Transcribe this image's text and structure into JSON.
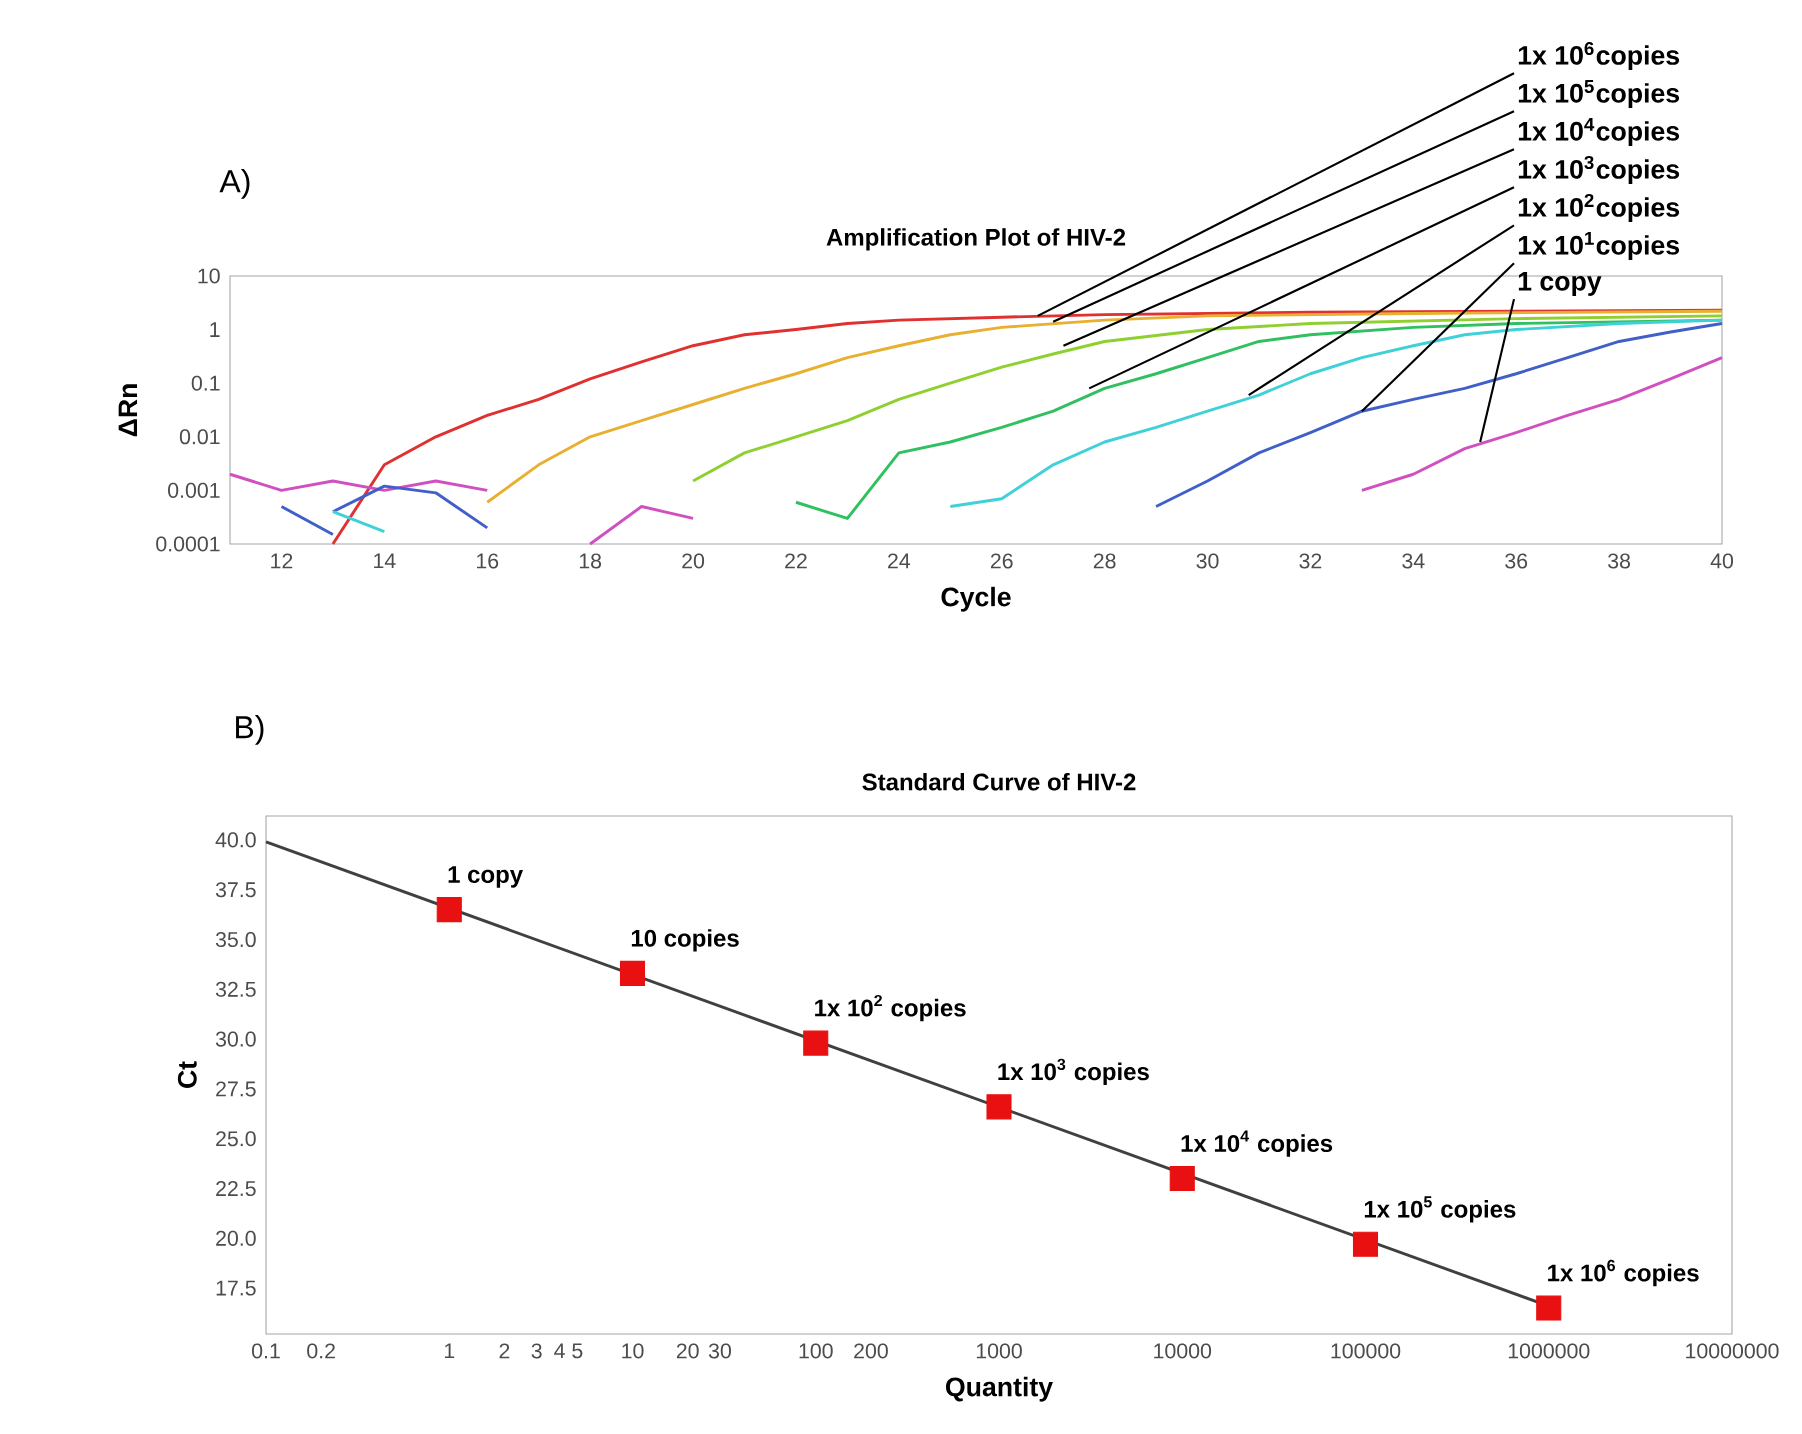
{
  "chart_data": [
    {
      "type": "line",
      "title": "Amplification Plot of HIV-2",
      "xlabel": "Cycle",
      "ylabel": "ΔRn",
      "log": "y",
      "xlim": [
        11,
        40
      ],
      "xticks": [
        12,
        14,
        16,
        18,
        20,
        22,
        24,
        26,
        28,
        30,
        32,
        34,
        36,
        38,
        40
      ],
      "ylim": [
        0.0001,
        10
      ],
      "yticks": [
        0.0001,
        0.001,
        0.01,
        0.1,
        1,
        10
      ],
      "series": [
        {
          "color": "#e03030",
          "x": [
            13,
            14,
            15,
            16,
            17,
            18,
            19,
            20,
            21,
            22,
            23,
            24,
            26,
            28,
            32,
            36,
            40
          ],
          "values": [
            0.0001,
            0.003,
            0.01,
            0.025,
            0.05,
            0.12,
            0.25,
            0.5,
            0.8,
            1.0,
            1.3,
            1.5,
            1.7,
            1.9,
            2.1,
            2.2,
            2.3
          ]
        },
        {
          "color": "#e8b030",
          "x": [
            16,
            17,
            18,
            19,
            20,
            21,
            22,
            23,
            24,
            25,
            26,
            28,
            30,
            34,
            40
          ],
          "values": [
            0.0006,
            0.003,
            0.01,
            0.02,
            0.04,
            0.08,
            0.15,
            0.3,
            0.5,
            0.8,
            1.1,
            1.5,
            1.8,
            2.0,
            2.2
          ]
        },
        {
          "color": "#8fd030",
          "x": [
            20,
            21,
            22,
            23,
            24,
            25,
            26,
            27,
            28,
            30,
            32,
            36,
            40
          ],
          "values": [
            0.0015,
            0.005,
            0.01,
            0.02,
            0.05,
            0.1,
            0.2,
            0.35,
            0.6,
            1.0,
            1.3,
            1.6,
            1.8
          ]
        },
        {
          "color": "#30c060",
          "x": [
            22,
            23,
            24,
            25,
            26,
            27,
            28,
            29,
            30,
            31,
            32,
            34,
            36,
            40
          ],
          "values": [
            0.0006,
            0.0003,
            0.005,
            0.008,
            0.015,
            0.03,
            0.08,
            0.15,
            0.3,
            0.6,
            0.8,
            1.1,
            1.3,
            1.5
          ]
        },
        {
          "color": "#40d0d8",
          "x": [
            25,
            26,
            27,
            28,
            29,
            30,
            31,
            32,
            33,
            34,
            35,
            36,
            38,
            40
          ],
          "values": [
            0.0005,
            0.0007,
            0.003,
            0.008,
            0.015,
            0.03,
            0.06,
            0.15,
            0.3,
            0.5,
            0.8,
            1.0,
            1.3,
            1.5
          ]
        },
        {
          "color": "#4060c8",
          "x": [
            29,
            30,
            31,
            32,
            33,
            34,
            35,
            36,
            37,
            38,
            39,
            40
          ],
          "values": [
            0.0005,
            0.0015,
            0.005,
            0.012,
            0.03,
            0.05,
            0.08,
            0.15,
            0.3,
            0.6,
            0.9,
            1.3
          ]
        },
        {
          "color": "#d050c0",
          "x": [
            33,
            34,
            35,
            36,
            37,
            38,
            39,
            40
          ],
          "values": [
            0.001,
            0.002,
            0.006,
            0.012,
            0.025,
            0.05,
            0.12,
            0.3
          ]
        },
        {
          "color": "#d050c0",
          "x": [
            11,
            12,
            13,
            14,
            15,
            16
          ],
          "values": [
            0.002,
            0.001,
            0.0015,
            0.001,
            0.0015,
            0.001
          ]
        },
        {
          "color": "#d050c0",
          "x": [
            18,
            19,
            20
          ],
          "values": [
            0.0001,
            0.0005,
            0.0003
          ]
        },
        {
          "color": "#4060c8",
          "x": [
            12,
            13
          ],
          "values": [
            0.0005,
            0.00015
          ]
        },
        {
          "color": "#4060c8",
          "x": [
            13,
            14,
            15,
            16
          ],
          "values": [
            0.0004,
            0.0012,
            0.0009,
            0.0002
          ]
        },
        {
          "color": "#40d0d8",
          "x": [
            13,
            14
          ],
          "values": [
            0.0004,
            0.00017
          ]
        }
      ],
      "annotations": [
        "A)",
        {
          "text": "1x 10$^{6}$copies",
          "x": 26.7,
          "y": 1.8
        },
        {
          "text": "1x 10$^{5}$copies",
          "x": 27,
          "y": 1.4
        },
        {
          "text": "1x 10$^{4}$copies",
          "x": 27.2,
          "y": 0.5
        },
        {
          "text": "1x 10$^{3}$copies",
          "x": 27.7,
          "y": 0.08
        },
        {
          "text": "1x 10$^{2}$copies",
          "x": 30.8,
          "y": 0.06
        },
        {
          "text": "1x 10$^{1}$copies",
          "x": 33,
          "y": 0.03
        },
        {
          "text": "1 copy",
          "x": 35.3,
          "y": 0.008
        }
      ]
    },
    {
      "type": "scatter",
      "title": "Standard Curve of HIV-2",
      "xlabel": "Quantity",
      "ylabel": "Ct",
      "log": "x",
      "marker": "square",
      "xlim": [
        0.1,
        10000000
      ],
      "xticks": [
        0.1,
        0.2,
        1,
        2,
        3,
        4,
        5,
        10,
        20,
        30,
        100,
        200,
        1000,
        10000,
        100000,
        1000000,
        10000000
      ],
      "ylim": [
        15.2,
        41.2
      ],
      "yticks": [
        17.5,
        {
          "value": 20,
          "label": "20.0"
        },
        22.5,
        {
          "value": 25,
          "label": "25.0"
        },
        27.5,
        {
          "value": 30,
          "label": "30.0"
        },
        32.5,
        {
          "value": 35,
          "label": "35.0"
        },
        37.5,
        {
          "value": 40,
          "label": "40.0"
        }
      ],
      "series": [
        {
          "type": "line",
          "marker": "none",
          "color": "#404040",
          "x": [
            0.1,
            1000000
          ],
          "values": [
            39.9,
            16.6
          ]
        },
        {
          "color": "#e81010",
          "x": [
            1,
            10,
            100,
            1000,
            10000,
            100000,
            1000000
          ],
          "values": [
            36.5,
            33.3,
            29.8,
            26.6,
            23.0,
            19.7,
            16.5
          ]
        }
      ],
      "annotations": [
        "B)",
        {
          "text": "1 copy",
          "x": 1,
          "y": 36.5
        },
        {
          "text": "10 copies",
          "x": 10,
          "y": 33.3
        },
        {
          "text": "1x 10$^{2}$ copies",
          "x": 100,
          "y": 29.8
        },
        {
          "text": "1x 10$^{3}$ copies",
          "x": 1000,
          "y": 26.6
        },
        {
          "text": "1x 10$^{4}$ copies",
          "x": 10000,
          "y": 23.0
        },
        {
          "text": "1x 10$^{5}$ copies",
          "x": 100000,
          "y": 19.7
        },
        {
          "text": "1x 10$^{6}$ copies",
          "x": 1000000,
          "y": 16.5
        }
      ]
    }
  ]
}
